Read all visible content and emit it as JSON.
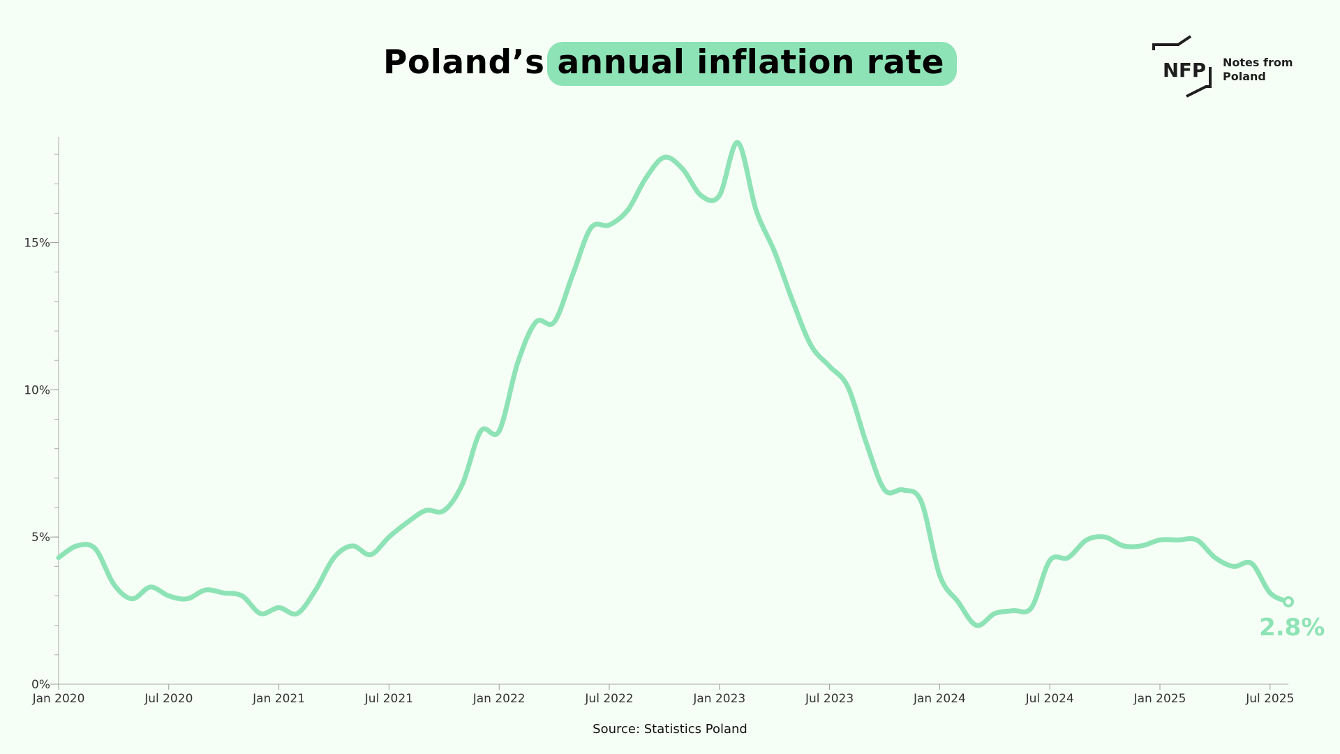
{
  "header": {
    "title_prefix": "Poland’s",
    "title_highlight": "annual inflation rate"
  },
  "logo": {
    "mark": "NFP",
    "line1": "Notes from",
    "line2": "Poland"
  },
  "footer": {
    "source": "Source: Statistics Poland"
  },
  "colors": {
    "accent": "#8ee3b6",
    "background": "#f6fff5",
    "axis": "#aaaaaa",
    "text": "#333333"
  },
  "chart_data": {
    "type": "line",
    "title": "Poland’s annual inflation rate",
    "xlabel": "",
    "ylabel": "",
    "ylim": [
      0,
      18.5
    ],
    "grid": false,
    "y_ticks": [
      0,
      5,
      10,
      15
    ],
    "y_tick_labels": [
      "0%",
      "5%",
      "10%",
      "15%"
    ],
    "x_tick_labels": [
      "Jan 2020",
      "Jul 2020",
      "Jan 2021",
      "Jul 2021",
      "Jan 2022",
      "Jul 2022",
      "Jan 2023",
      "Jul 2023",
      "Jan 2024",
      "Jul 2024",
      "Jan 2025",
      "Jul 2025"
    ],
    "x_tick_month_index": [
      0,
      6,
      12,
      18,
      24,
      30,
      36,
      42,
      48,
      54,
      60,
      66
    ],
    "series": [
      {
        "name": "Annual inflation rate (%)",
        "start": "Jan 2020",
        "values": [
          4.3,
          4.7,
          4.6,
          3.4,
          2.9,
          3.3,
          3.0,
          2.9,
          3.2,
          3.1,
          3.0,
          2.4,
          2.6,
          2.4,
          3.2,
          4.3,
          4.7,
          4.4,
          5.0,
          5.5,
          5.9,
          5.9,
          6.8,
          8.6,
          8.6,
          10.9,
          12.3,
          12.3,
          13.9,
          15.5,
          15.6,
          16.1,
          17.2,
          17.9,
          17.5,
          16.6,
          16.6,
          18.4,
          16.1,
          14.7,
          13.0,
          11.5,
          10.8,
          10.1,
          8.2,
          6.6,
          6.6,
          6.2,
          3.7,
          2.8,
          2.0,
          2.4,
          2.5,
          2.6,
          4.2,
          4.3,
          4.9,
          5.0,
          4.7,
          4.7,
          4.9,
          4.9,
          4.9,
          4.3,
          4.0,
          4.1,
          3.1,
          2.8
        ]
      }
    ],
    "annotation": {
      "label": "2.8%",
      "target": "last_point"
    }
  }
}
